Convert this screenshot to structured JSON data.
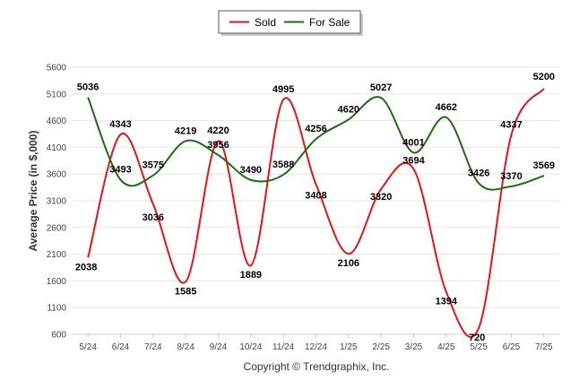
{
  "chart_data": {
    "type": "line",
    "ylabel": "Average Price (in $,000)",
    "ylim": [
      600,
      5600
    ],
    "yticks": [
      600,
      1100,
      1600,
      2100,
      2600,
      3100,
      3600,
      4100,
      4600,
      5100,
      5600
    ],
    "categories": [
      "5/24",
      "6/24",
      "7/24",
      "8/24",
      "9/24",
      "10/24",
      "11/24",
      "12/24",
      "1/25",
      "2/25",
      "3/25",
      "4/25",
      "5/25",
      "6/25",
      "7/25"
    ],
    "series": [
      {
        "name": "Sold",
        "color": "#e8141a",
        "values": [
          2038,
          4343,
          3036,
          1585,
          4220,
          1889,
          4995,
          3408,
          2106,
          3320,
          3694,
          1394,
          720,
          4337,
          5200
        ]
      },
      {
        "name": "For Sale",
        "color": "#1e6b12",
        "values": [
          5036,
          3493,
          3575,
          4219,
          3956,
          3490,
          3588,
          4256,
          4620,
          5027,
          4001,
          4662,
          3426,
          3370,
          3569
        ]
      }
    ],
    "grid": true,
    "legend": "top-center"
  },
  "footer": {
    "copyright": "Copyright © Trendgraphix, Inc."
  }
}
